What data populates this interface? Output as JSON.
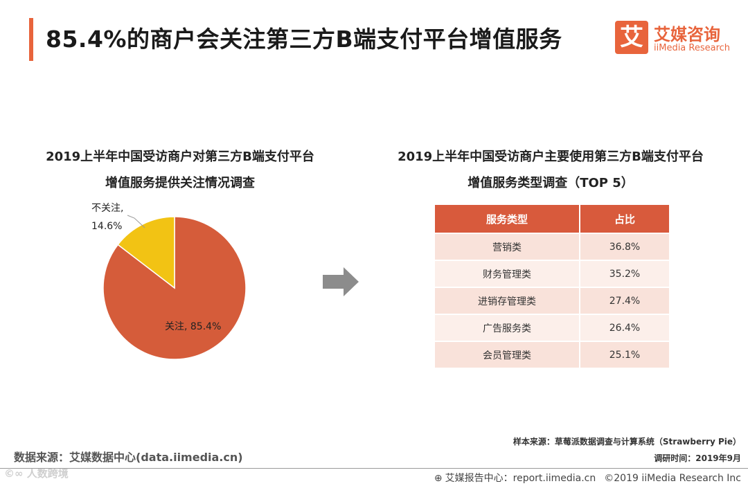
{
  "header": {
    "title": "85.4%的商户会关注第三方B端支付平台增值服务",
    "logo_icon": "艾",
    "logo_cn": "艾媒咨询",
    "logo_en": "iiMedia Research"
  },
  "left_chart": {
    "title_line1": "2019上半年中国受访商户对第三方B端支付平台",
    "title_line2": "增值服务提供关注情况调查"
  },
  "chart_data": {
    "type": "pie",
    "title": "2019上半年中国受访商户对第三方B端支付平台增值服务提供关注情况调查",
    "slices": [
      {
        "label": "关注",
        "value": 85.4,
        "label_text": "关注, 85.4%",
        "color": "#d55c3a"
      },
      {
        "label": "不关注",
        "value": 14.6,
        "label_line1": "不关注,",
        "label_line2": "14.6%",
        "color": "#f2c314"
      }
    ]
  },
  "table": {
    "title_line1": "2019上半年中国受访商户主要使用第三方B端支付平台",
    "title_line2": "增值服务类型调查（TOP 5）",
    "headers": [
      "服务类型",
      "占比"
    ],
    "rows": [
      [
        "营销类",
        "36.8%"
      ],
      [
        "财务管理类",
        "35.2%"
      ],
      [
        "进销存管理类",
        "27.4%"
      ],
      [
        "广告服务类",
        "26.4%"
      ],
      [
        "会员管理类",
        "25.1%"
      ]
    ]
  },
  "source": {
    "sample": "样本来源：草莓派数据调查与计算系统（Strawberry Pie）",
    "date": "调研时间：2019年9月",
    "data_source": "数据来源：艾媒数据中心(data.iimedia.cn)"
  },
  "watermark": "人数跨境",
  "footer": {
    "report_center": "艾媒报告中心：report.iimedia.cn",
    "copyright": "©2019 iiMedia Research Inc"
  }
}
